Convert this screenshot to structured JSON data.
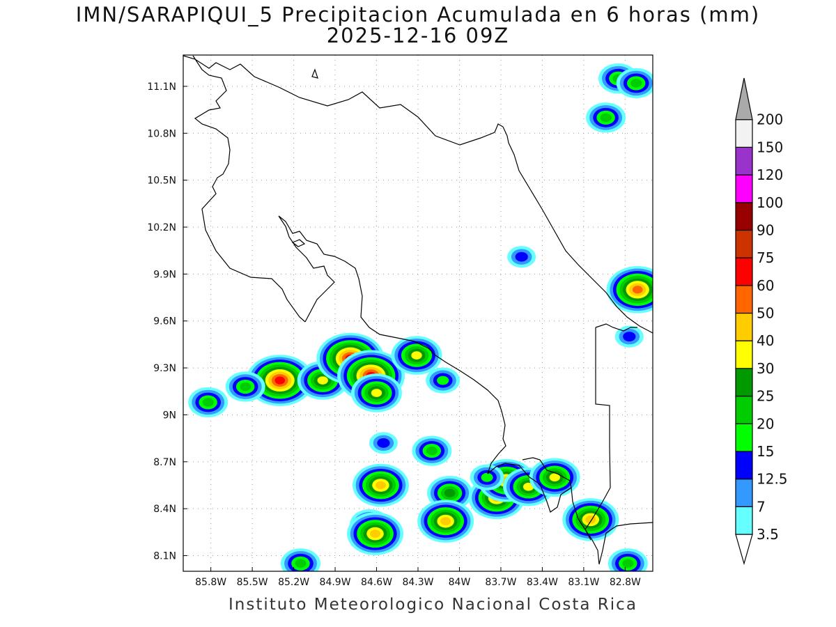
{
  "header": {
    "title": "IMN/SARAPIQUI_5 Precipitacion Acumulada en 6 horas (mm)",
    "subtitle": "2025-12-16 09Z"
  },
  "footer": {
    "credit": "Instituto Meteorologico Nacional Costa Rica"
  },
  "map": {
    "lon_range": [
      -86.0,
      -82.6
    ],
    "lat_range": [
      8.0,
      11.3
    ],
    "x_ticks": [
      {
        "lon": -85.8,
        "label": "85.8W"
      },
      {
        "lon": -85.5,
        "label": "85.5W"
      },
      {
        "lon": -85.2,
        "label": "85.2W"
      },
      {
        "lon": -84.9,
        "label": "84.9W"
      },
      {
        "lon": -84.6,
        "label": "84.6W"
      },
      {
        "lon": -84.3,
        "label": "84.3W"
      },
      {
        "lon": -84.0,
        "label": "84W"
      },
      {
        "lon": -83.7,
        "label": "83.7W"
      },
      {
        "lon": -83.4,
        "label": "83.4W"
      },
      {
        "lon": -83.1,
        "label": "83.1W"
      },
      {
        "lon": -82.8,
        "label": "82.8W"
      }
    ],
    "y_ticks": [
      {
        "lat": 8.1,
        "label": "8.1N"
      },
      {
        "lat": 8.4,
        "label": "8.4N"
      },
      {
        "lat": 8.7,
        "label": "8.7N"
      },
      {
        "lat": 9.0,
        "label": "9N"
      },
      {
        "lat": 9.3,
        "label": "9.3N"
      },
      {
        "lat": 9.6,
        "label": "9.6N"
      },
      {
        "lat": 9.9,
        "label": "9.9N"
      },
      {
        "lat": 10.2,
        "label": "10.2N"
      },
      {
        "lat": 10.5,
        "label": "10.5N"
      },
      {
        "lat": 10.8,
        "label": "10.8N"
      },
      {
        "lat": 11.1,
        "label": "11.1N"
      }
    ],
    "gridlines": "dotted"
  },
  "colorbar": {
    "units": "mm",
    "bins": [
      {
        "label": "3.5",
        "color": "#66ffff"
      },
      {
        "label": "7",
        "color": "#3399ff"
      },
      {
        "label": "12.5",
        "color": "#0000ff"
      },
      {
        "label": "15",
        "color": "#00ff00"
      },
      {
        "label": "20",
        "color": "#00cc00"
      },
      {
        "label": "25",
        "color": "#009900"
      },
      {
        "label": "30",
        "color": "#ffff00"
      },
      {
        "label": "40",
        "color": "#ffcc00"
      },
      {
        "label": "50",
        "color": "#ff6600"
      },
      {
        "label": "60",
        "color": "#ff0000"
      },
      {
        "label": "75",
        "color": "#cc3300"
      },
      {
        "label": "90",
        "color": "#990000"
      },
      {
        "label": "100",
        "color": "#ff00ff"
      },
      {
        "label": "120",
        "color": "#9933cc"
      },
      {
        "label": "150",
        "color": "#f2f2f2"
      },
      {
        "label": "200",
        "color": "#aaaaaa"
      }
    ]
  },
  "precip_cells": [
    {
      "lon": -85.3,
      "lat": 9.22,
      "peak": 60
    },
    {
      "lon": -85.55,
      "lat": 9.18,
      "peak": 20
    },
    {
      "lon": -85.82,
      "lat": 9.08,
      "peak": 20
    },
    {
      "lon": -84.99,
      "lat": 9.22,
      "peak": 30
    },
    {
      "lon": -84.79,
      "lat": 9.36,
      "peak": 60
    },
    {
      "lon": -84.64,
      "lat": 9.25,
      "peak": 60
    },
    {
      "lon": -84.6,
      "lat": 9.14,
      "peak": 30
    },
    {
      "lon": -84.31,
      "lat": 9.38,
      "peak": 30
    },
    {
      "lon": -84.12,
      "lat": 9.22,
      "peak": 15
    },
    {
      "lon": -84.55,
      "lat": 8.82,
      "peak": 12.5
    },
    {
      "lon": -84.57,
      "lat": 8.55,
      "peak": 40
    },
    {
      "lon": -84.2,
      "lat": 8.77,
      "peak": 20
    },
    {
      "lon": -84.07,
      "lat": 8.5,
      "peak": 25
    },
    {
      "lon": -84.1,
      "lat": 8.32,
      "peak": 40
    },
    {
      "lon": -84.65,
      "lat": 8.3,
      "peak": 20
    },
    {
      "lon": -84.61,
      "lat": 8.24,
      "peak": 40
    },
    {
      "lon": -83.73,
      "lat": 8.47,
      "peak": 40
    },
    {
      "lon": -83.66,
      "lat": 8.58,
      "peak": 40
    },
    {
      "lon": -83.8,
      "lat": 8.6,
      "peak": 15
    },
    {
      "lon": -83.5,
      "lat": 8.54,
      "peak": 30
    },
    {
      "lon": -83.31,
      "lat": 8.6,
      "peak": 30
    },
    {
      "lon": -83.05,
      "lat": 8.33,
      "peak": 40
    },
    {
      "lon": -82.71,
      "lat": 9.8,
      "peak": 50
    },
    {
      "lon": -82.94,
      "lat": 10.9,
      "peak": 20
    },
    {
      "lon": -82.85,
      "lat": 11.15,
      "peak": 20
    },
    {
      "lon": -82.72,
      "lat": 11.12,
      "peak": 20
    },
    {
      "lon": -82.77,
      "lat": 9.5,
      "peak": 12.5
    },
    {
      "lon": -83.55,
      "lat": 10.01,
      "peak": 12.5
    },
    {
      "lon": -82.78,
      "lat": 8.05,
      "peak": 20
    },
    {
      "lon": -85.15,
      "lat": 8.05,
      "peak": 20
    }
  ]
}
